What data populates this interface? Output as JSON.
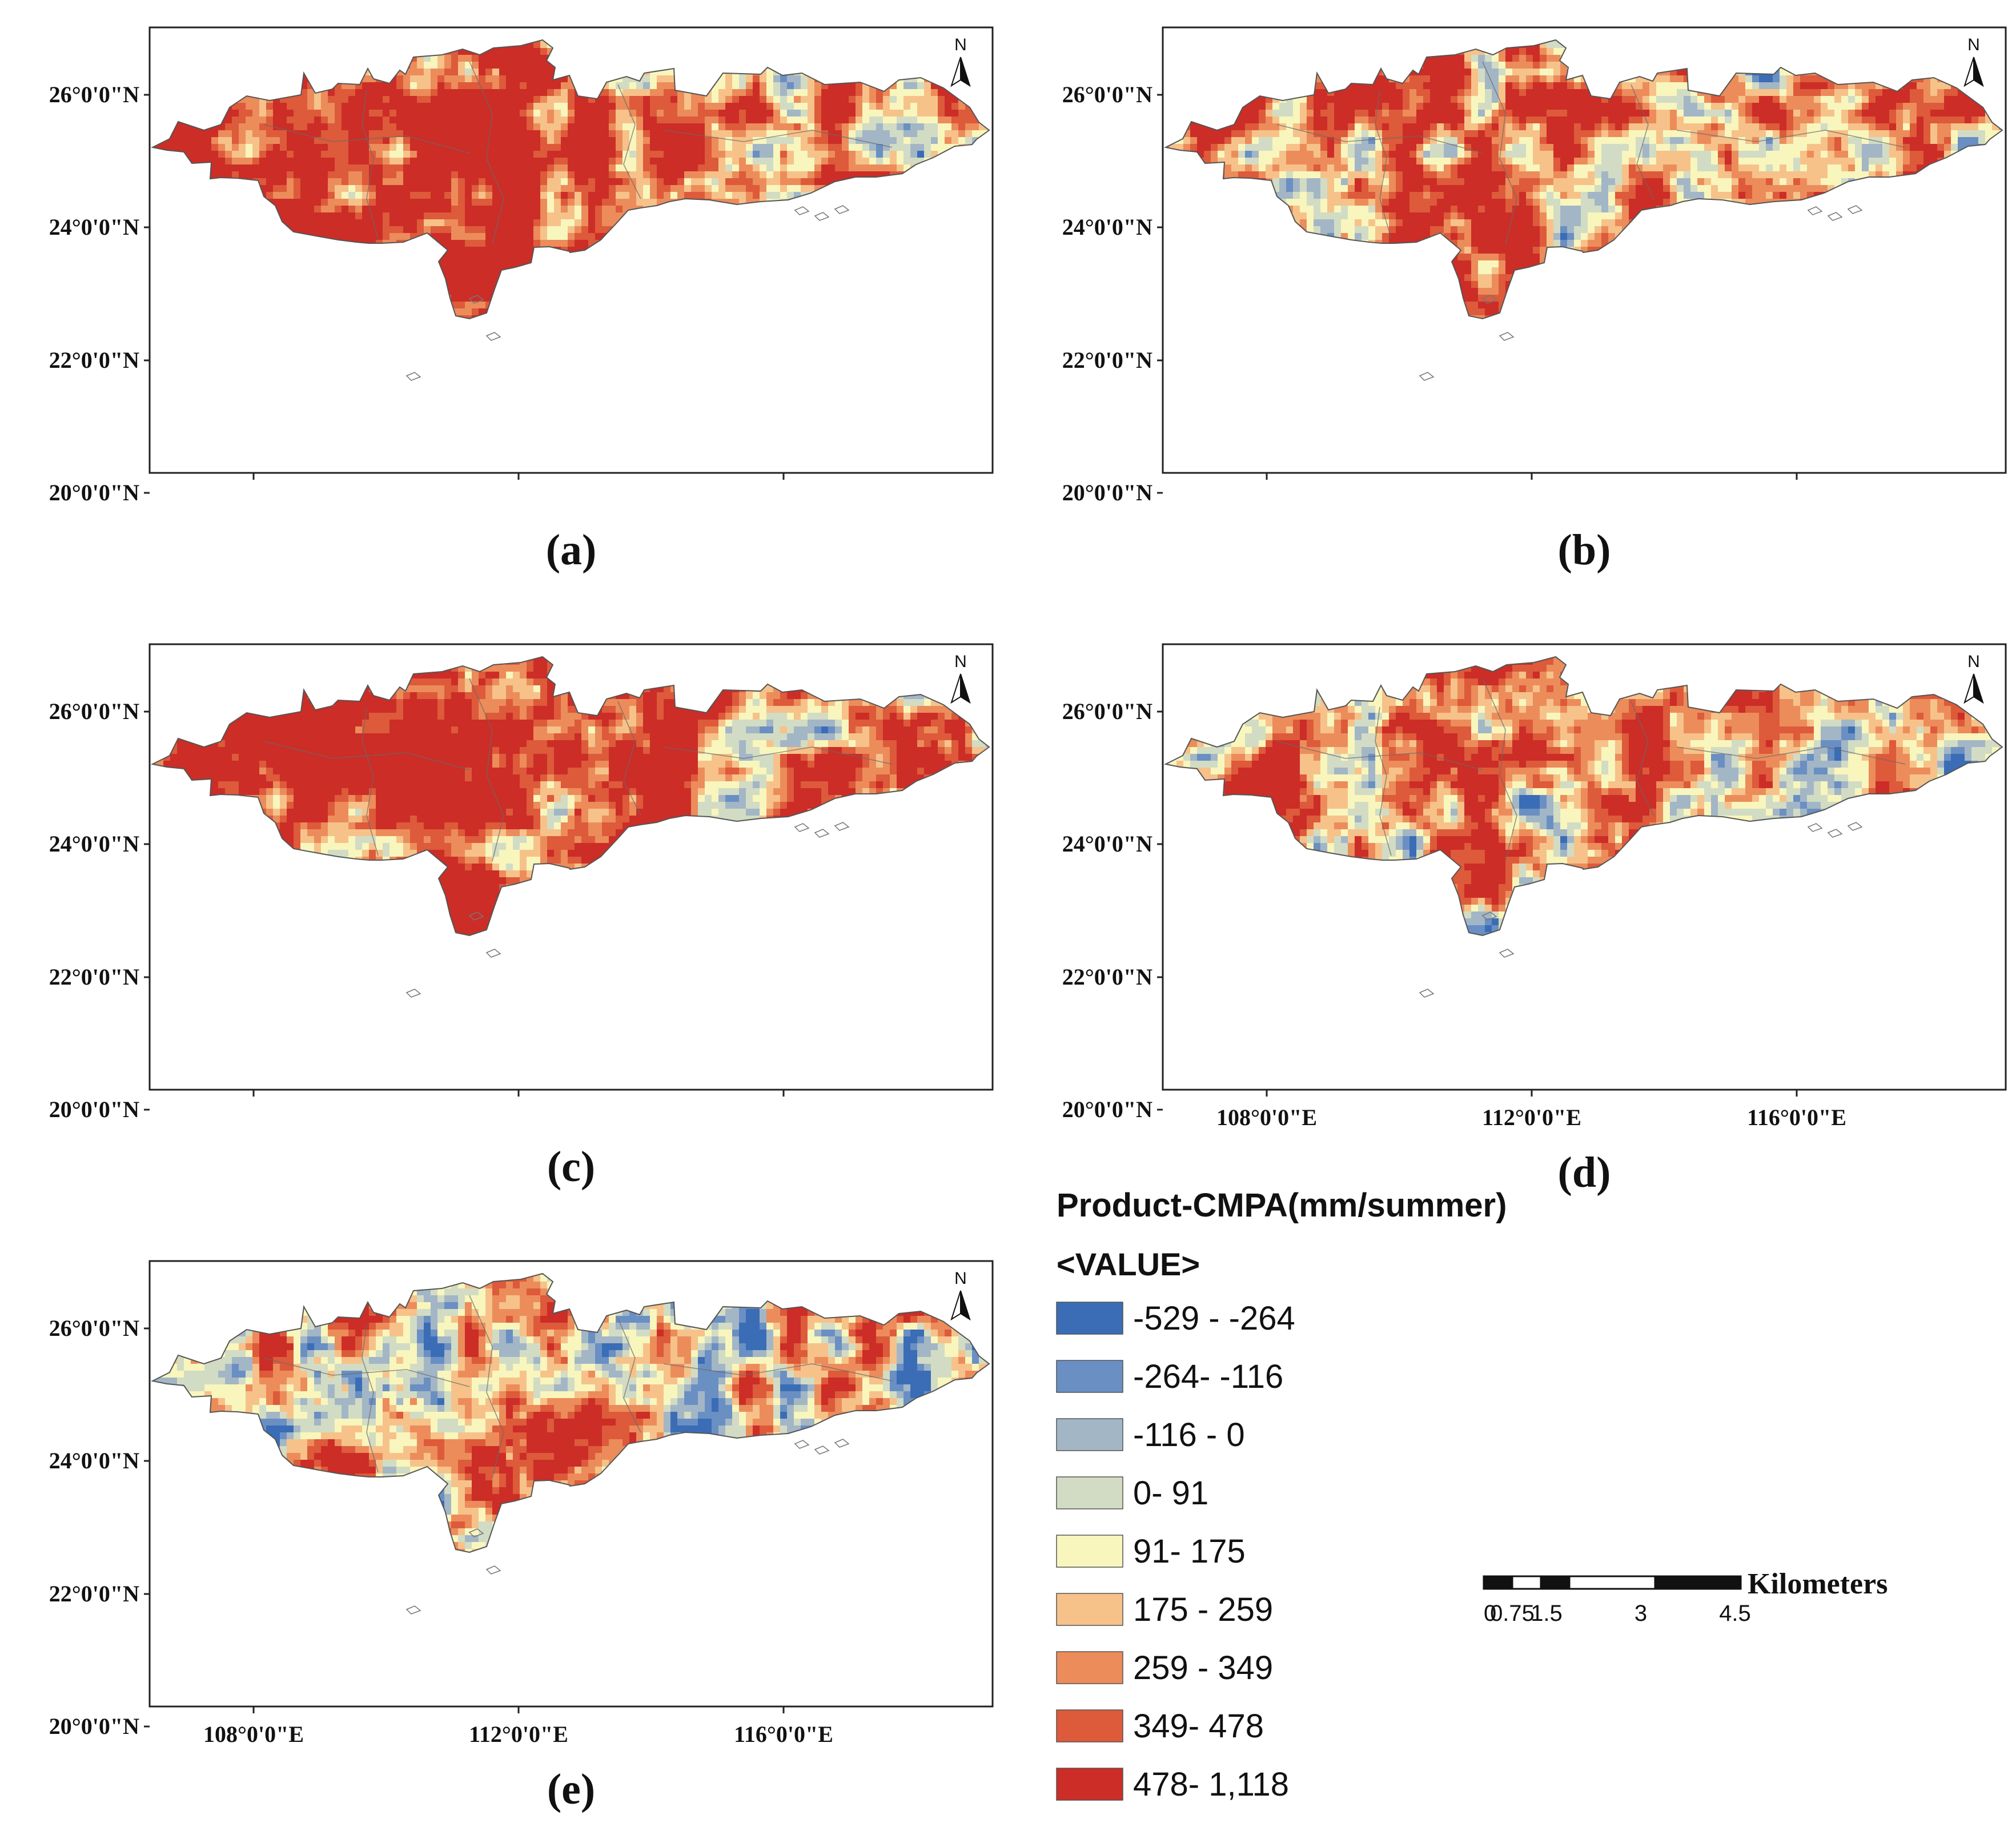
{
  "figure": {
    "lat_labels": [
      "26°0'0\"N",
      "24°0'0\"N",
      "22°0'0\"N",
      "20°0'0\"N"
    ],
    "lon_labels": [
      "108°0'0\"E",
      "112°0'0\"E",
      "116°0'0\"E"
    ],
    "north_label": "N",
    "panels": [
      {
        "id": "a",
        "caption": "(a)",
        "show_lon_labels": false,
        "west": 0.55,
        "east": 0.25
      },
      {
        "id": "b",
        "caption": "(b)",
        "show_lon_labels": false,
        "west": 0.35,
        "east": 0.05
      },
      {
        "id": "c",
        "caption": "(c)",
        "show_lon_labels": false,
        "west": 0.6,
        "east": 0.1
      },
      {
        "id": "d",
        "caption": "(d)",
        "show_lon_labels": true,
        "west": 0.18,
        "east": 0.05
      },
      {
        "id": "e",
        "caption": "(e)",
        "show_lon_labels": true,
        "west": 0.2,
        "east": 0.0
      }
    ],
    "legend": {
      "title": "Product-CMPA(mm/summer)",
      "subtitle": "<VALUE>",
      "classes": [
        {
          "label": "-529 - -264",
          "color": "#3a6db5"
        },
        {
          "label": "-264- -116",
          "color": "#6a8fc3"
        },
        {
          "label": "-116 - 0",
          "color": "#a3b6c6"
        },
        {
          "label": "0- 91",
          "color": "#d2dcc4"
        },
        {
          "label": "91- 175",
          "color": "#f8f6bd"
        },
        {
          "label": "175 - 259",
          "color": "#f6c28a"
        },
        {
          "label": "259 - 349",
          "color": "#ec8c5b"
        },
        {
          "label": "349- 478",
          "color": "#dd5a3a"
        },
        {
          "label": "478- 1,118",
          "color": "#cc2d27"
        }
      ]
    },
    "scale_bar": {
      "unit": "Kilometers",
      "ticks": [
        "0",
        "0.75",
        "1.5",
        "3",
        "4.5"
      ]
    }
  }
}
